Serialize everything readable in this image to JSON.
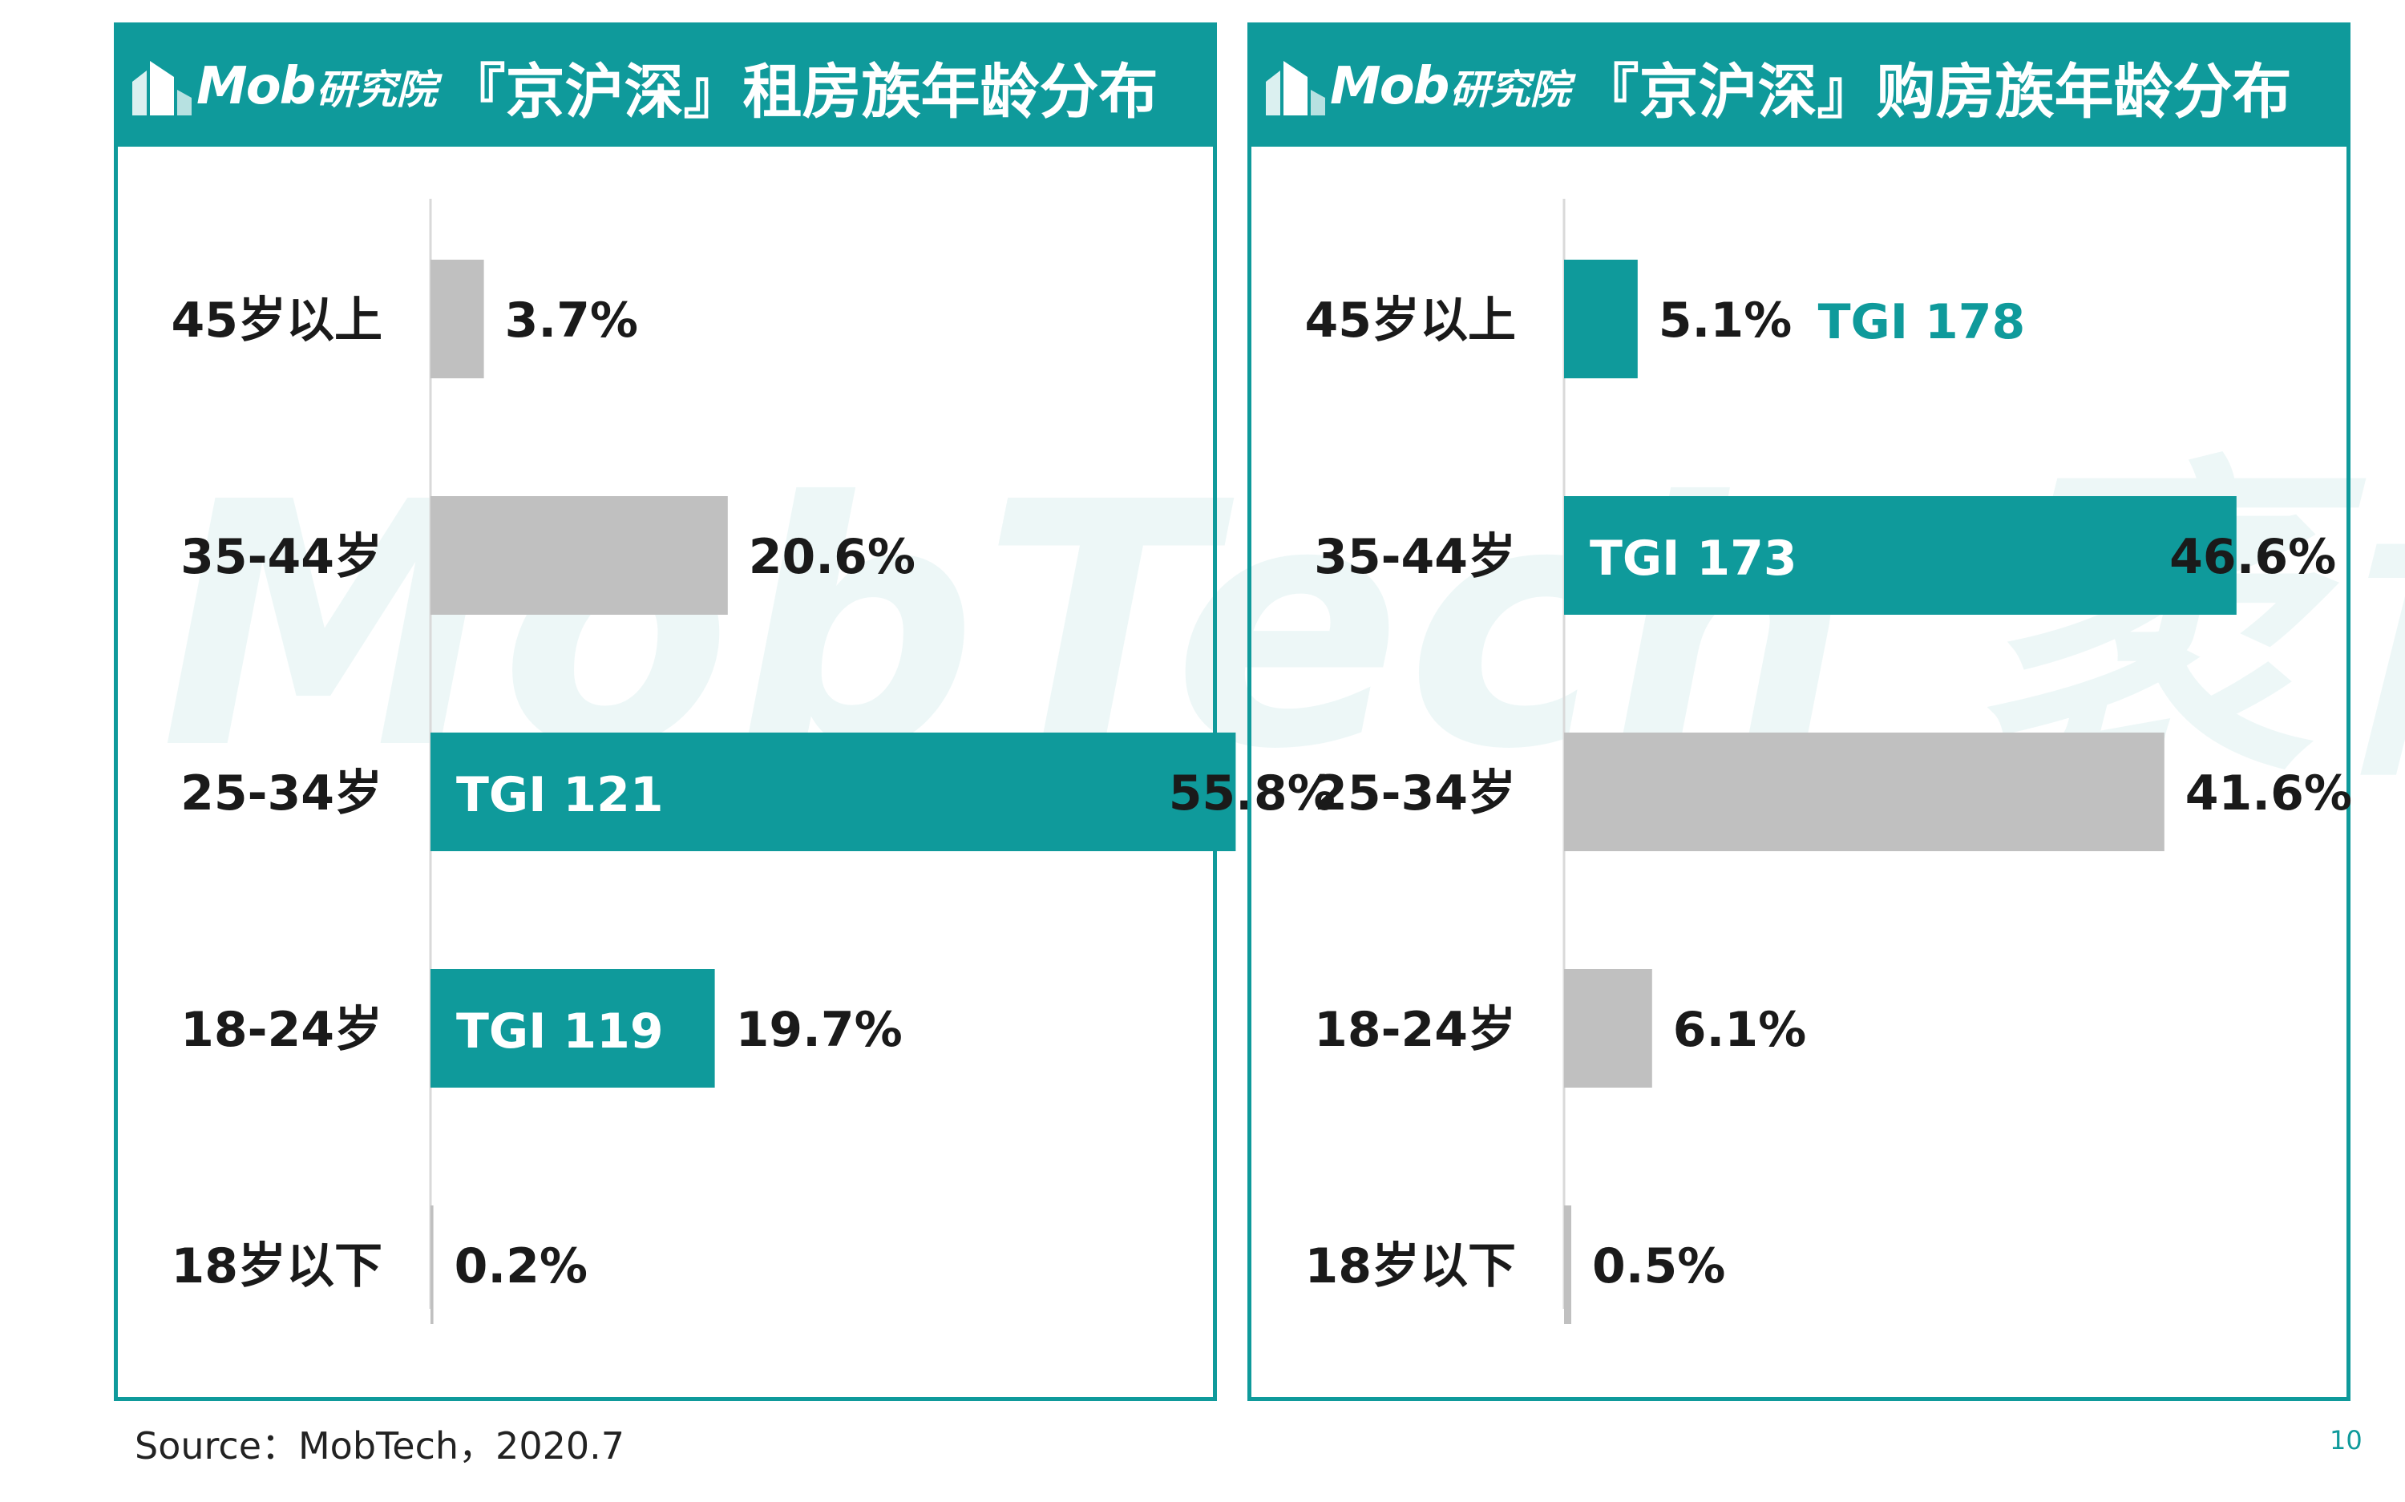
{
  "watermark": "MobTech 袤博",
  "colors": {
    "accent": "#0f9a9b",
    "neutral_bar": "#c0c0c0",
    "axis": "#d9d9d9",
    "text": "#1a1a1a",
    "white": "#ffffff"
  },
  "logo": {
    "icon": "mob-building-icon",
    "brand": "Mob",
    "sub": "研究院"
  },
  "footer": {
    "source": "Source：MobTech，2020.7",
    "page_number": "10"
  },
  "chart_data": [
    {
      "type": "bar",
      "orientation": "horizontal",
      "title": "『京沪深』租房族年龄分布",
      "categories": [
        "45岁以上",
        "35-44岁",
        "25-34岁",
        "18-24岁",
        "18岁以下"
      ],
      "values": [
        3.7,
        20.6,
        55.8,
        19.7,
        0.2
      ],
      "value_labels": [
        "3.7%",
        "20.6%",
        "55.8%",
        "19.7%",
        "0.2%"
      ],
      "highlighted": [
        false,
        false,
        true,
        true,
        false
      ],
      "tgi_labels": [
        "",
        "",
        "TGI 121",
        "TGI 119",
        ""
      ],
      "xlim": [
        0,
        60
      ],
      "grid": false,
      "legend": "none"
    },
    {
      "type": "bar",
      "orientation": "horizontal",
      "title": "『京沪深』购房族年龄分布",
      "categories": [
        "45岁以上",
        "35-44岁",
        "25-34岁",
        "18-24岁",
        "18岁以下"
      ],
      "values": [
        5.1,
        46.6,
        41.6,
        6.1,
        0.5
      ],
      "value_labels": [
        "5.1%",
        "46.6%",
        "41.6%",
        "6.1%",
        "0.5%"
      ],
      "highlighted": [
        true,
        true,
        false,
        false,
        false
      ],
      "tgi_labels": [
        "TGI 178",
        "TGI 173",
        "",
        "",
        ""
      ],
      "xlim": [
        0,
        60
      ],
      "grid": false,
      "legend": "none"
    }
  ]
}
